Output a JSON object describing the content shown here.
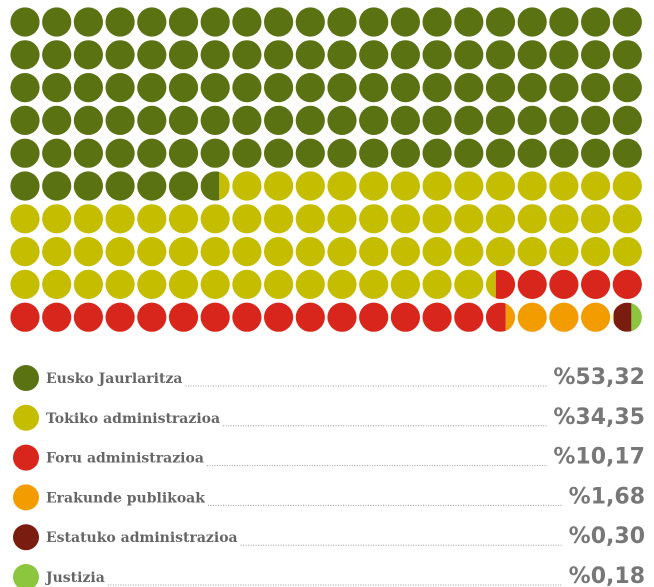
{
  "chart_data": {
    "type": "waffle",
    "categories": [
      "Eusko Jaurlaritza",
      "Tokiko administrazioa",
      "Foru administrazioa",
      "Erakunde publikoak",
      "Estatuko administrazioa",
      "Justizia"
    ],
    "values": [
      53.32,
      34.35,
      10.17,
      1.68,
      0.3,
      0.18
    ],
    "value_labels": [
      "%53,32",
      "%34,35",
      "%10,17",
      "%1,68",
      "%0,30",
      "%0,18"
    ],
    "colors": [
      "#5a7212",
      "#c4bd00",
      "#d9261c",
      "#f39c00",
      "#7a1c10",
      "#8cc63f"
    ]
  }
}
